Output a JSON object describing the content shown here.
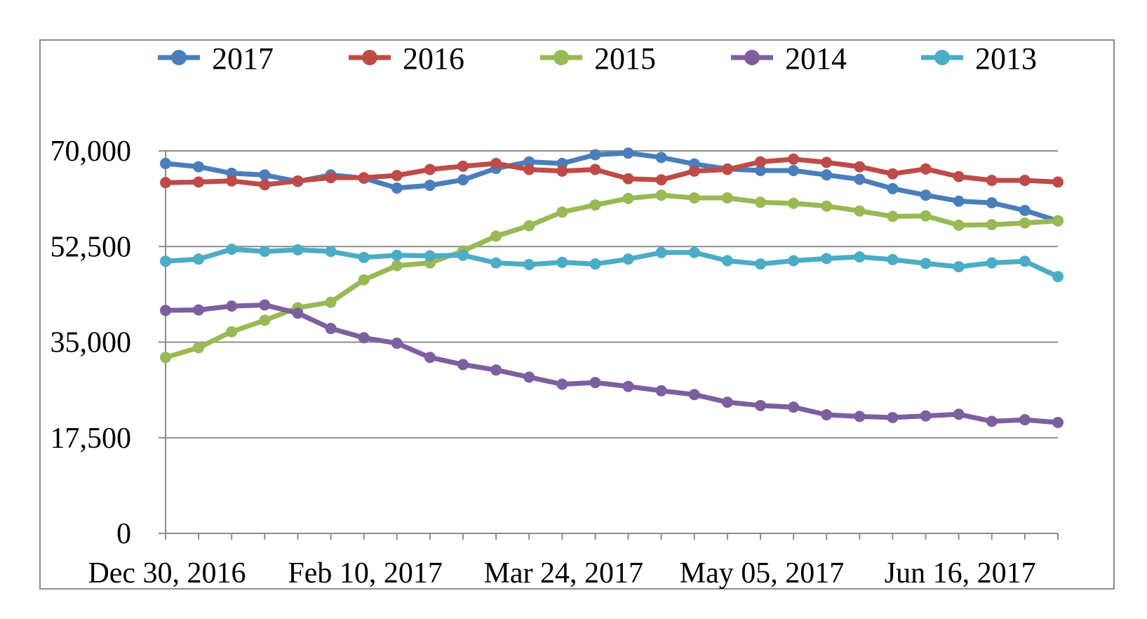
{
  "chart_data": {
    "type": "line",
    "title": "",
    "xlabel": "",
    "ylabel": "",
    "ylim": [
      0,
      70000
    ],
    "yticks": [
      "0",
      "17,500",
      "35,000",
      "52,500",
      "70,000"
    ],
    "ytick_values": [
      0,
      17500,
      35000,
      52500,
      70000
    ],
    "x_tick_labels": [
      "Dec 30, 2016",
      "Feb 10, 2017",
      "Mar 24, 2017",
      "May 05, 2017",
      "Jun 16, 2017"
    ],
    "x_tick_label_indices": [
      0,
      6,
      12,
      18,
      24
    ],
    "x": [
      "Dec 30, 2016",
      "Jan 06, 2017",
      "Jan 13, 2017",
      "Jan 20, 2017",
      "Jan 27, 2017",
      "Feb 03, 2017",
      "Feb 10, 2017",
      "Feb 17, 2017",
      "Feb 24, 2017",
      "Mar 03, 2017",
      "Mar 10, 2017",
      "Mar 17, 2017",
      "Mar 24, 2017",
      "Mar 31, 2017",
      "Apr 07, 2017",
      "Apr 14, 2017",
      "Apr 21, 2017",
      "Apr 28, 2017",
      "May 05, 2017",
      "May 12, 2017",
      "May 19, 2017",
      "May 26, 2017",
      "Jun 02, 2017",
      "Jun 09, 2017",
      "Jun 16, 2017",
      "Jun 23, 2017",
      "Jun 30, 2017",
      "Jul 07, 2017"
    ],
    "grid": true,
    "legend_position": "top",
    "series": [
      {
        "name": "2017",
        "color": "#4a7ebb",
        "values": [
          67700,
          67100,
          65900,
          65600,
          64400,
          65600,
          65000,
          63200,
          63700,
          64700,
          66800,
          68000,
          67700,
          69300,
          69600,
          68800,
          67600,
          66700,
          66400,
          66400,
          65600,
          64800,
          63100,
          61900,
          60800,
          60500,
          59100,
          57200
        ]
      },
      {
        "name": "2016",
        "color": "#be4b48",
        "values": [
          64200,
          64300,
          64500,
          63800,
          64500,
          65100,
          65100,
          65500,
          66600,
          67200,
          67700,
          66600,
          66300,
          66600,
          64900,
          64700,
          66300,
          66600,
          68000,
          68500,
          67900,
          67100,
          65800,
          66700,
          65300,
          64600,
          64600,
          64300
        ]
      },
      {
        "name": "2015",
        "color": "#98b954",
        "values": [
          32200,
          34000,
          36900,
          39000,
          41300,
          42300,
          46400,
          49000,
          49500,
          51700,
          54400,
          56300,
          58800,
          60100,
          61300,
          61900,
          61400,
          61400,
          60600,
          60400,
          59900,
          59000,
          58000,
          58100,
          56400,
          56500,
          56800,
          57200
        ]
      },
      {
        "name": "2014",
        "color": "#7d5fa0",
        "values": [
          40800,
          40900,
          41600,
          41800,
          40300,
          37500,
          35800,
          34800,
          32200,
          30900,
          29900,
          28600,
          27300,
          27600,
          26900,
          26100,
          25400,
          24000,
          23400,
          23100,
          21700,
          21400,
          21200,
          21500,
          21800,
          20500,
          20800,
          20300
        ]
      },
      {
        "name": "2013",
        "color": "#4bacc6",
        "values": [
          49800,
          50200,
          52000,
          51600,
          51900,
          51600,
          50500,
          50900,
          50800,
          50900,
          49500,
          49200,
          49600,
          49300,
          50200,
          51400,
          51400,
          49900,
          49300,
          49900,
          50300,
          50600,
          50100,
          49400,
          48800,
          49500,
          49800,
          47000
        ]
      }
    ]
  }
}
